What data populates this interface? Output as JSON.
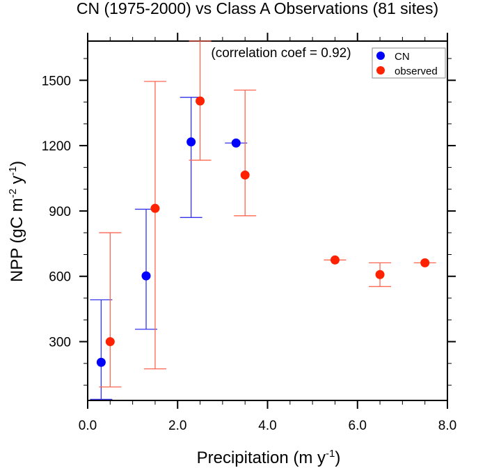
{
  "chart_data": {
    "type": "scatter",
    "title": "CN (1975-2000) vs Class A Observations (81 sites)",
    "annotation": "(correlation coef =  0.92)",
    "xlabel": "Precipitation (m y",
    "xlabel_sup": "-1",
    "xlabel_end": ")",
    "ylabel_parts": [
      "NPP (gC m",
      "-2",
      " y",
      "-1",
      ")"
    ],
    "xlim": [
      0.0,
      8.0
    ],
    "ylim": [
      30,
      1680
    ],
    "xticks": [
      0.0,
      2.0,
      4.0,
      6.0,
      8.0
    ],
    "xtick_labels": [
      "0.0",
      "2.0",
      "4.0",
      "6.0",
      "8.0"
    ],
    "xminor_step": 0.5,
    "yticks": [
      300,
      600,
      900,
      1200,
      1500
    ],
    "ytick_labels": [
      "300",
      "600",
      "900",
      "1200",
      "1500"
    ],
    "yminor_step": 100,
    "grid": false,
    "legend_position": "top-right",
    "series": [
      {
        "name": "CN",
        "color": "#0000ff",
        "errcolor": "#3333ee",
        "points": [
          {
            "x": 0.3,
            "y": 205,
            "lo": 35,
            "hi": 492
          },
          {
            "x": 1.3,
            "y": 602,
            "lo": 357,
            "hi": 908
          },
          {
            "x": 2.3,
            "y": 1217,
            "lo": 870,
            "hi": 1422
          },
          {
            "x": 3.3,
            "y": 1212,
            "lo": 1212,
            "hi": 1212
          }
        ]
      },
      {
        "name": "observed",
        "color": "#ff2200",
        "errcolor": "#ff6650",
        "points": [
          {
            "x": 0.5,
            "y": 300,
            "lo": 92,
            "hi": 800
          },
          {
            "x": 1.5,
            "y": 912,
            "lo": 175,
            "hi": 1495
          },
          {
            "x": 2.5,
            "y": 1405,
            "lo": 1133,
            "hi": 1680
          },
          {
            "x": 3.5,
            "y": 1065,
            "lo": 878,
            "hi": 1455
          },
          {
            "x": 5.5,
            "y": 675,
            "lo": 675,
            "hi": 675
          },
          {
            "x": 6.5,
            "y": 608,
            "lo": 553,
            "hi": 662
          },
          {
            "x": 7.5,
            "y": 662,
            "lo": 662,
            "hi": 662
          }
        ]
      }
    ]
  }
}
